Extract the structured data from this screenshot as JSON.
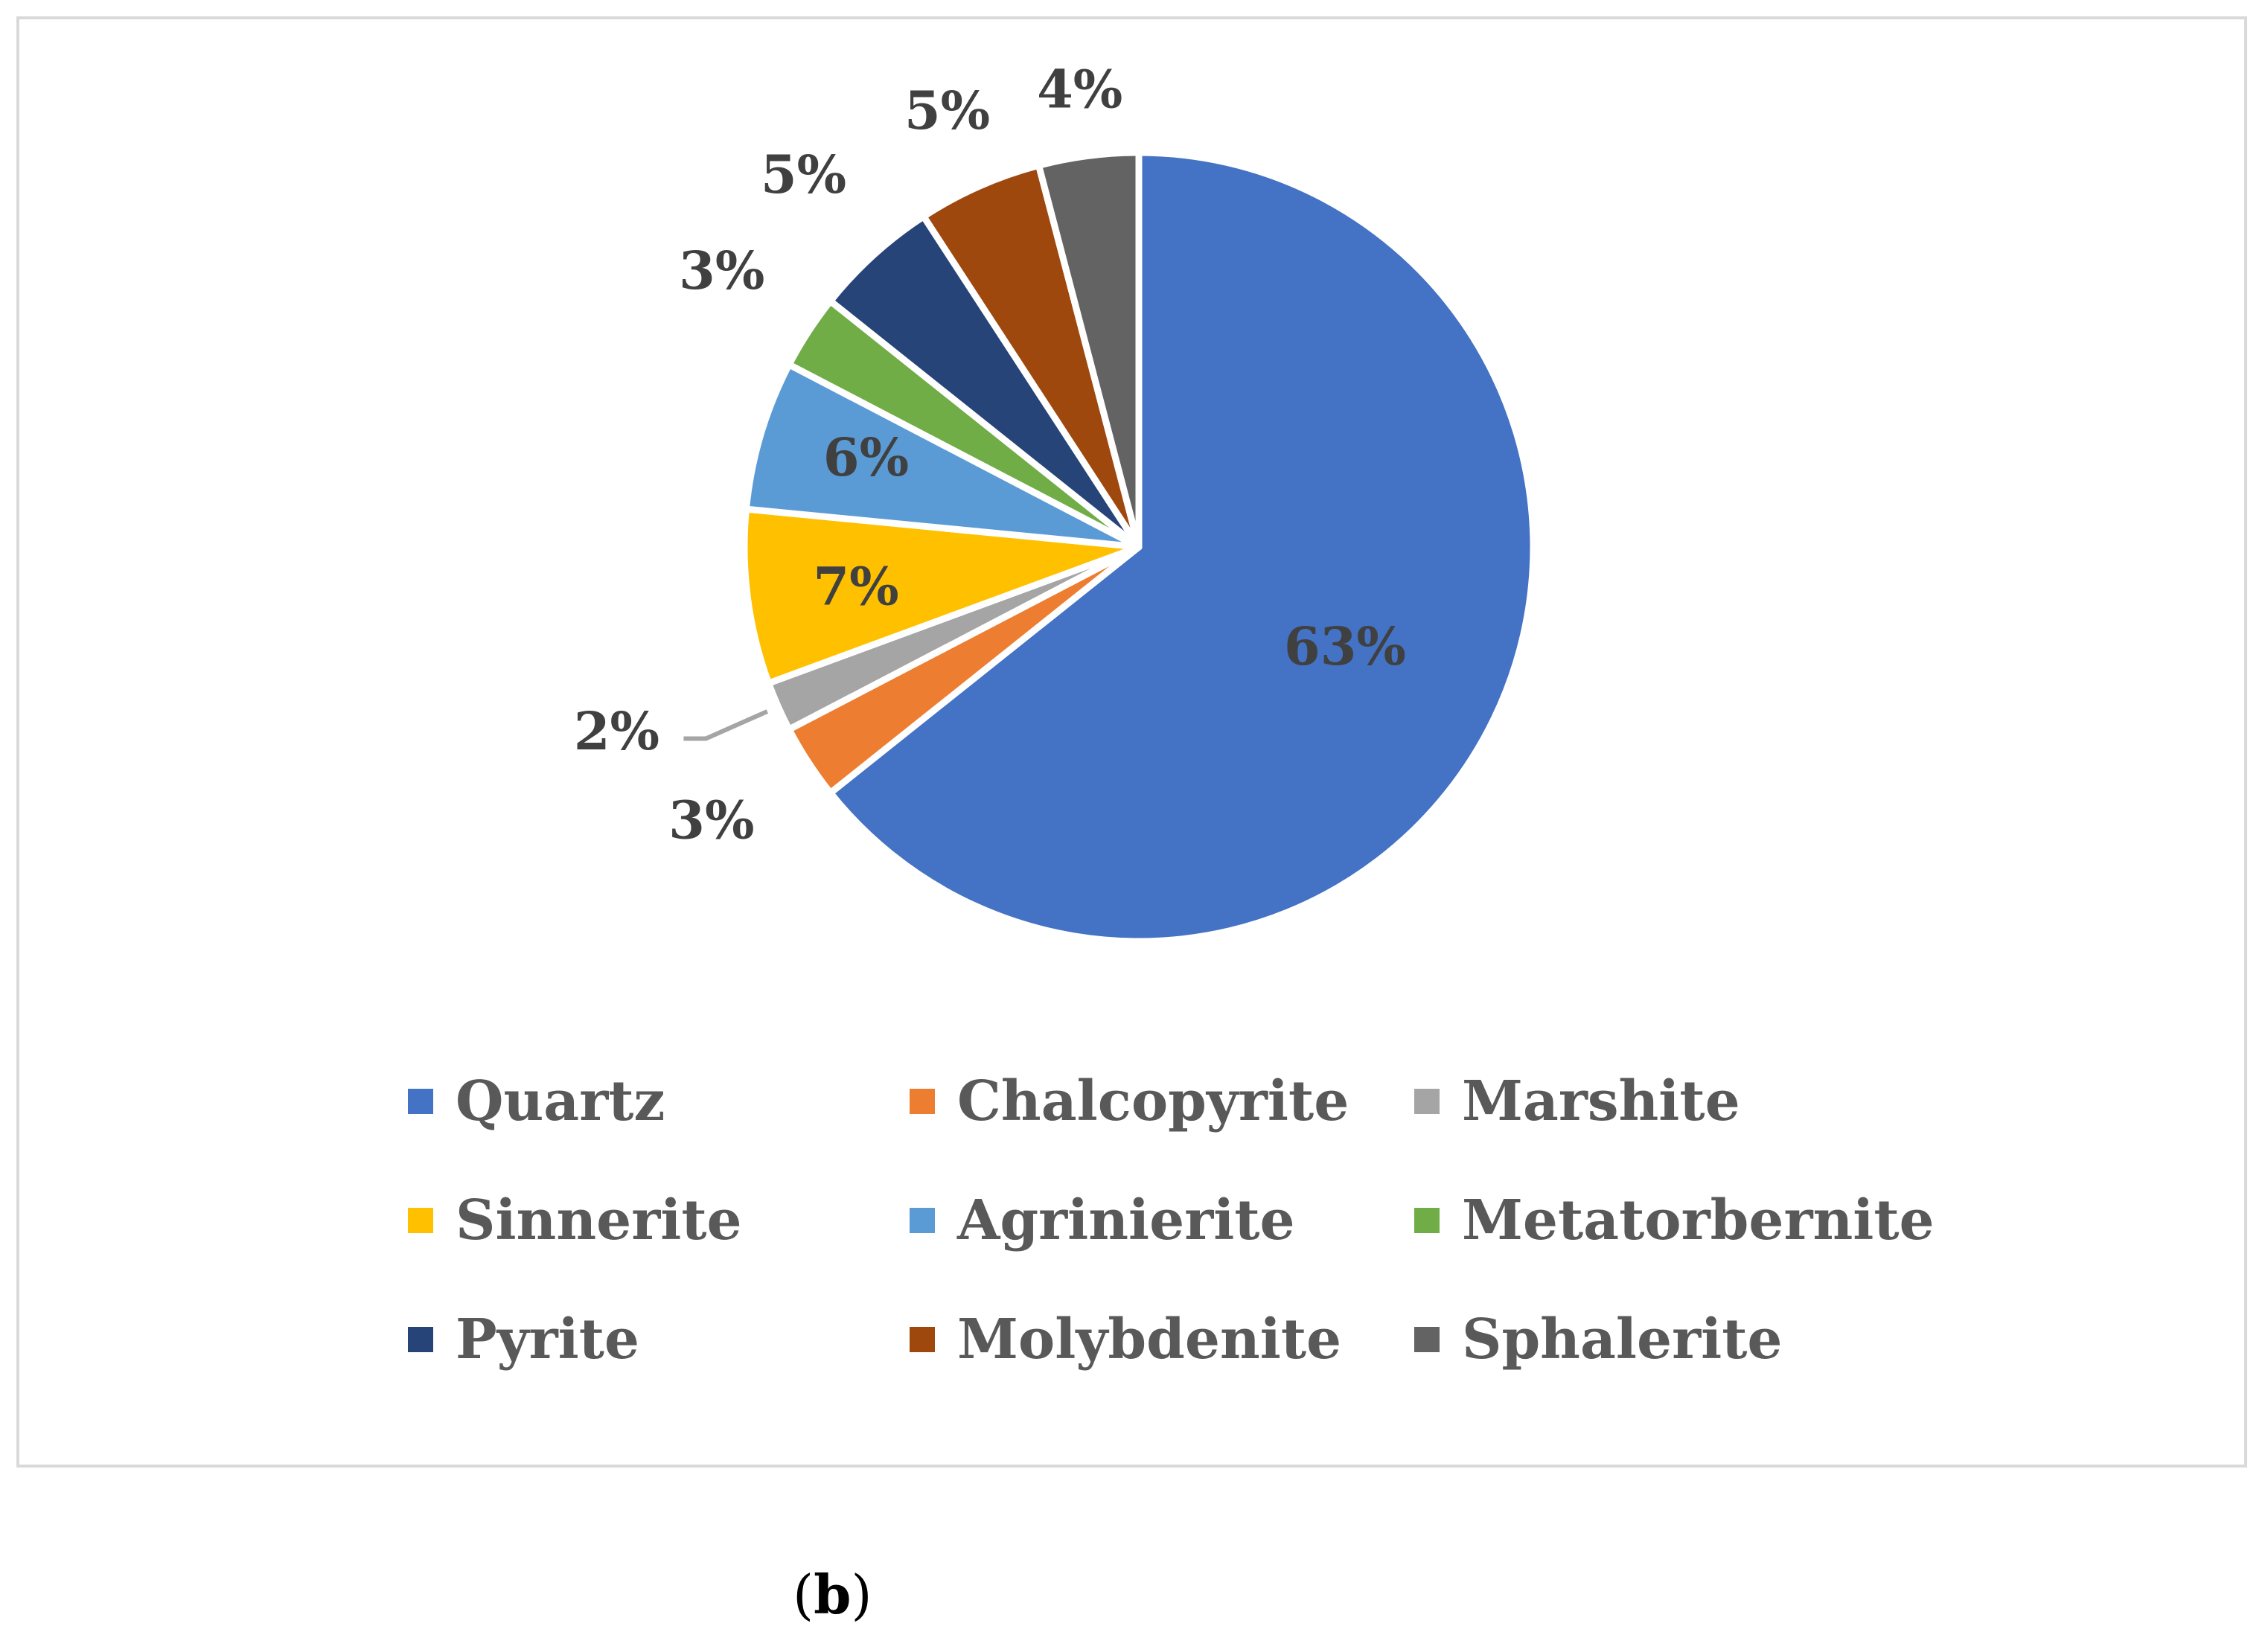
{
  "caption": {
    "open": "(",
    "letter": "b",
    "close": ")"
  },
  "chart_data": {
    "type": "pie",
    "title": "",
    "series": [
      {
        "values": [
          63,
          3,
          2,
          7,
          6,
          3,
          5,
          5,
          4
        ]
      }
    ],
    "categories": [
      "Quartz",
      "Chalcopyrite",
      "Marshite",
      "Sinnerite",
      "Agrinierite",
      "Metatorbernite",
      "Pyrite",
      "Molybdenite",
      "Sphalerite"
    ],
    "labels": [
      "63%",
      "3%",
      "2%",
      "7%",
      "6%",
      "3%",
      "5%",
      "5%",
      "4%"
    ],
    "colors": [
      "#4472C4",
      "#ED7D31",
      "#A5A5A5",
      "#FFC000",
      "#5B9BD5",
      "#70AD47",
      "#264478",
      "#9E480E",
      "#636363"
    ],
    "legend_position": "bottom",
    "start_angle": "12 o'clock, clockwise"
  }
}
